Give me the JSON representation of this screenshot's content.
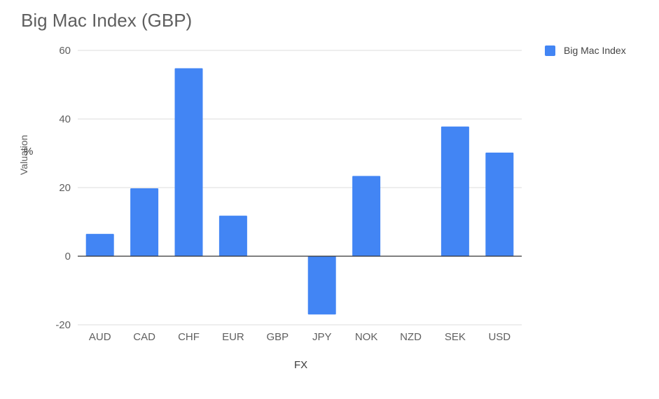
{
  "chart_data": {
    "type": "bar",
    "title": "Big Mac Index (GBP)",
    "ylabel": "Valuation",
    "yunit": "%",
    "xlabel": "FX",
    "categories": [
      "AUD",
      "CAD",
      "CHF",
      "EUR",
      "GBP",
      "JPY",
      "NOK",
      "NZD",
      "SEK",
      "USD"
    ],
    "series": [
      {
        "name": "Big Mac Index",
        "values": [
          6.5,
          19.8,
          54.8,
          11.8,
          0,
          -17,
          23.4,
          0,
          37.8,
          30.2
        ]
      }
    ],
    "ylim": [
      -20,
      60
    ],
    "yticks": [
      -20,
      0,
      20,
      40,
      60
    ],
    "grid": true,
    "legend_position": "right",
    "colors": {
      "bar": "#4285f4",
      "grid": "#dddddd",
      "axis": "#333333"
    }
  }
}
